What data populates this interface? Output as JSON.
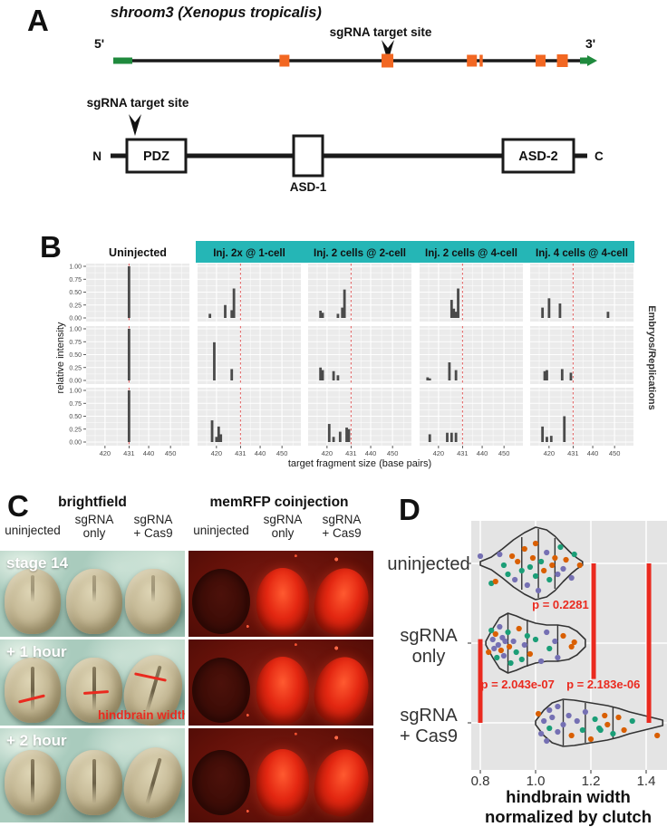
{
  "colors": {
    "accent_teal": "#25b6b6",
    "exon_orange": "#f26722",
    "utr_green": "#1f8a3d",
    "signal_red": "#ea2a1f",
    "bar_gray": "#4a4a4a",
    "panel_gray": "#ebebeb",
    "violin_bg": "#e4e4e4",
    "dashed_red": "#e05a5a",
    "ink": "#111111",
    "tick_gray": "#4d4d4d"
  },
  "panelA": {
    "label": "A",
    "title": "shroom3 (Xenopus tropicalis)",
    "gene": {
      "sgRNA_label": "sgRNA target site",
      "five_prime": "5'",
      "three_prime": "3'",
      "exons": [
        {
          "f": 0.363,
          "w": 11,
          "h": 13
        },
        {
          "f": 0.585,
          "w": 13,
          "h": 15
        },
        {
          "f": 0.767,
          "w": 11,
          "h": 13
        },
        {
          "f": 0.787,
          "w": 3.5,
          "h": 13
        },
        {
          "f": 0.915,
          "w": 11,
          "h": 13
        },
        {
          "f": 0.962,
          "w": 12,
          "h": 14
        }
      ],
      "target_exon_index": 1
    },
    "protein": {
      "sgRNA_label": "sgRNA target site",
      "n_label": "N",
      "c_label": "C",
      "domains": [
        {
          "name": "PDZ",
          "label_inside": true
        },
        {
          "name": "ASD-1",
          "label_inside": false
        },
        {
          "name": "ASD-2",
          "label_inside": true
        }
      ]
    }
  },
  "panelB": {
    "label": "B",
    "col1_header": "Uninjected",
    "headers": [
      "Inj. 2x @ 1-cell",
      "Inj. 2 cells @ 2-cell",
      "Inj. 2 cells @ 4-cell",
      "Inj. 4 cells @ 4-cell"
    ],
    "ylabel": "relative intensity",
    "xlabel": "target fragment size (base pairs)",
    "right_label": "Embryos/Replications",
    "y_ticks": [
      "1.00",
      "0.75",
      "0.50",
      "0.25",
      "0.00"
    ],
    "y_tick_values": [
      1.0,
      0.75,
      0.5,
      0.25,
      0.0
    ],
    "x_ticks": [
      420,
      431,
      440,
      450
    ],
    "x_minor": [
      415.5,
      425.5,
      435.5,
      445,
      455
    ],
    "target_size": 431,
    "type": "bar",
    "facets": [
      {
        "rows": [
          [
            [
              431,
              1.0
            ]
          ],
          [
            [
              431,
              1.0
            ]
          ],
          [
            [
              431,
              1.0
            ]
          ]
        ]
      },
      {
        "rows": [
          [
            [
              417,
              0.08
            ],
            [
              424,
              0.25
            ],
            [
              427,
              0.15
            ],
            [
              428,
              0.57
            ]
          ],
          [
            [
              419,
              0.74
            ],
            [
              427,
              0.22
            ]
          ],
          [
            [
              418,
              0.42
            ],
            [
              420,
              0.1
            ],
            [
              421,
              0.3
            ],
            [
              422,
              0.15
            ]
          ]
        ]
      },
      {
        "rows": [
          [
            [
              417,
              0.14
            ],
            [
              418,
              0.1
            ],
            [
              425,
              0.08
            ],
            [
              427,
              0.2
            ],
            [
              428,
              0.55
            ]
          ],
          [
            [
              417,
              0.25
            ],
            [
              418,
              0.2
            ],
            [
              423,
              0.18
            ],
            [
              425,
              0.1
            ]
          ],
          [
            [
              421,
              0.35
            ],
            [
              423,
              0.1
            ],
            [
              426,
              0.2
            ],
            [
              429,
              0.28
            ],
            [
              430,
              0.25
            ]
          ]
        ]
      },
      {
        "rows": [
          [
            [
              426,
              0.35
            ],
            [
              427,
              0.18
            ],
            [
              428,
              0.12
            ],
            [
              429,
              0.57
            ]
          ],
          [
            [
              415,
              0.06
            ],
            [
              416,
              0.04
            ],
            [
              425,
              0.35
            ],
            [
              428,
              0.2
            ]
          ],
          [
            [
              416,
              0.15
            ],
            [
              424,
              0.18
            ],
            [
              426,
              0.18
            ],
            [
              428,
              0.18
            ]
          ]
        ]
      },
      {
        "rows": [
          [
            [
              417,
              0.2
            ],
            [
              420,
              0.38
            ],
            [
              425,
              0.28
            ],
            [
              447,
              0.12
            ]
          ],
          [
            [
              418,
              0.18
            ],
            [
              419,
              0.2
            ],
            [
              426,
              0.22
            ],
            [
              430,
              0.15
            ]
          ],
          [
            [
              417,
              0.3
            ],
            [
              419,
              0.1
            ],
            [
              421,
              0.12
            ],
            [
              427,
              0.5
            ]
          ]
        ]
      }
    ]
  },
  "panelC": {
    "label": "C",
    "groups": [
      {
        "title": "brightfield",
        "type": "bf"
      },
      {
        "title": "memRFP coinjection",
        "type": "rfp"
      }
    ],
    "columns": [
      [
        "uninjected"
      ],
      [
        "sgRNA",
        "only"
      ],
      [
        "sgRNA",
        "+ Cas9"
      ]
    ],
    "rows": [
      {
        "label": "stage 14"
      },
      {
        "label": "+ 1 hour",
        "annotation": "hindbrain width"
      },
      {
        "label": "+ 2 hour"
      }
    ]
  },
  "panelD": {
    "label": "D",
    "type": "violin",
    "x_ticks": [
      "0.8",
      "1.0",
      "1.2",
      "1.4"
    ],
    "x_tick_values": [
      0.8,
      1.0,
      1.2,
      1.4
    ],
    "x_range": [
      0.77,
      1.48
    ],
    "xlabel_lines": [
      "hindbrain width",
      "normalized by clutch"
    ],
    "palette": {
      "o": "#d95f02",
      "g": "#1b9e77",
      "p": "#7570b3"
    },
    "violins": [
      {
        "label_lines": [
          "uninjected"
        ],
        "profile": [
          [
            0.8,
            2
          ],
          [
            0.84,
            7
          ],
          [
            0.88,
            16
          ],
          [
            0.92,
            26
          ],
          [
            0.96,
            34
          ],
          [
            1.0,
            40
          ],
          [
            1.04,
            37
          ],
          [
            1.07,
            30
          ],
          [
            1.1,
            20
          ],
          [
            1.13,
            11
          ],
          [
            1.15,
            6
          ],
          [
            1.17,
            2
          ]
        ],
        "quartiles": [
          [
            0.95,
            29
          ],
          [
            1.01,
            38
          ],
          [
            1.07,
            28
          ]
        ],
        "points": [
          [
            0.8,
            -8,
            "p"
          ],
          [
            0.84,
            22,
            "g"
          ],
          [
            0.855,
            20,
            "o"
          ],
          [
            0.87,
            -10,
            "p"
          ],
          [
            0.885,
            2,
            "g"
          ],
          [
            0.9,
            12,
            "g"
          ],
          [
            0.915,
            -8,
            "o"
          ],
          [
            0.925,
            18,
            "p"
          ],
          [
            0.935,
            -2,
            "o"
          ],
          [
            0.95,
            8,
            "g"
          ],
          [
            0.96,
            -16,
            "o"
          ],
          [
            0.97,
            24,
            "p"
          ],
          [
            0.98,
            4,
            "g"
          ],
          [
            0.99,
            -6,
            "o"
          ],
          [
            1.0,
            14,
            "g"
          ],
          [
            1.0,
            -22,
            "o"
          ],
          [
            1.01,
            30,
            "p"
          ],
          [
            1.02,
            -2,
            "g"
          ],
          [
            1.03,
            8,
            "o"
          ],
          [
            1.04,
            -12,
            "p"
          ],
          [
            1.05,
            18,
            "g"
          ],
          [
            1.06,
            2,
            "o"
          ],
          [
            1.07,
            -6,
            "o"
          ],
          [
            1.08,
            12,
            "p"
          ],
          [
            1.09,
            -18,
            "g"
          ],
          [
            1.1,
            6,
            "p"
          ],
          [
            1.11,
            -4,
            "o"
          ],
          [
            1.13,
            16,
            "p"
          ],
          [
            1.14,
            -10,
            "g"
          ],
          [
            1.16,
            2,
            "o"
          ]
        ]
      },
      {
        "label_lines": [
          "sgRNA",
          "only"
        ],
        "profile": [
          [
            0.82,
            2
          ],
          [
            0.845,
            16
          ],
          [
            0.87,
            28
          ],
          [
            0.9,
            33
          ],
          [
            0.93,
            30
          ],
          [
            0.96,
            26
          ],
          [
            1.0,
            22
          ],
          [
            1.04,
            20
          ],
          [
            1.08,
            20
          ],
          [
            1.12,
            18
          ],
          [
            1.15,
            13
          ],
          [
            1.18,
            4
          ]
        ],
        "quartiles": [
          [
            0.9,
            32
          ],
          [
            0.97,
            26
          ],
          [
            1.08,
            20
          ]
        ],
        "points": [
          [
            0.83,
            10,
            "o"
          ],
          [
            0.84,
            -14,
            "g"
          ],
          [
            0.845,
            -4,
            "p"
          ],
          [
            0.85,
            6,
            "p"
          ],
          [
            0.855,
            -10,
            "o"
          ],
          [
            0.86,
            16,
            "g"
          ],
          [
            0.865,
            2,
            "p"
          ],
          [
            0.87,
            -18,
            "p"
          ],
          [
            0.875,
            8,
            "o"
          ],
          [
            0.88,
            -6,
            "p"
          ],
          [
            0.885,
            14,
            "p"
          ],
          [
            0.89,
            -2,
            "p"
          ],
          [
            0.9,
            -12,
            "g"
          ],
          [
            0.905,
            4,
            "o"
          ],
          [
            0.91,
            22,
            "g"
          ],
          [
            0.92,
            -2,
            "p"
          ],
          [
            0.93,
            10,
            "g"
          ],
          [
            0.94,
            -16,
            "o"
          ],
          [
            0.95,
            18,
            "g"
          ],
          [
            0.96,
            2,
            "p"
          ],
          [
            0.97,
            -8,
            "g"
          ],
          [
            0.98,
            12,
            "o"
          ],
          [
            1.0,
            -4,
            "g"
          ],
          [
            1.02,
            20,
            "p"
          ],
          [
            1.04,
            -12,
            "p"
          ],
          [
            1.05,
            6,
            "g"
          ],
          [
            1.07,
            -2,
            "p"
          ],
          [
            1.08,
            16,
            "p"
          ],
          [
            1.1,
            -8,
            "o"
          ],
          [
            1.13,
            4,
            "o"
          ],
          [
            1.14,
            -1,
            "o"
          ]
        ]
      },
      {
        "label_lines": [
          "sgRNA",
          "+ Cas9"
        ],
        "profile": [
          [
            1.0,
            2
          ],
          [
            1.03,
            14
          ],
          [
            1.06,
            22
          ],
          [
            1.1,
            26
          ],
          [
            1.14,
            25
          ],
          [
            1.18,
            23
          ],
          [
            1.22,
            21
          ],
          [
            1.26,
            19
          ],
          [
            1.3,
            16
          ],
          [
            1.34,
            12
          ],
          [
            1.38,
            9
          ],
          [
            1.42,
            6
          ],
          [
            1.46,
            3
          ]
        ],
        "quartiles": [
          [
            1.1,
            25
          ],
          [
            1.18,
            22
          ],
          [
            1.28,
            17
          ]
        ],
        "points": [
          [
            1.01,
            -10,
            "o"
          ],
          [
            1.02,
            12,
            "p"
          ],
          [
            1.03,
            -2,
            "p"
          ],
          [
            1.04,
            20,
            "p"
          ],
          [
            1.05,
            -14,
            "p"
          ],
          [
            1.05,
            6,
            "g"
          ],
          [
            1.06,
            -6,
            "p"
          ],
          [
            1.08,
            10,
            "p"
          ],
          [
            1.08,
            -18,
            "p"
          ],
          [
            1.1,
            2,
            "p"
          ],
          [
            1.12,
            -8,
            "p"
          ],
          [
            1.13,
            14,
            "o"
          ],
          [
            1.15,
            -2,
            "p"
          ],
          [
            1.17,
            8,
            "g"
          ],
          [
            1.18,
            -12,
            "p"
          ],
          [
            1.2,
            18,
            "o"
          ],
          [
            1.215,
            -4,
            "g"
          ],
          [
            1.23,
            6,
            "g"
          ],
          [
            1.235,
            8,
            "g"
          ],
          [
            1.25,
            -8,
            "o"
          ],
          [
            1.26,
            2,
            "o"
          ],
          [
            1.28,
            12,
            "g"
          ],
          [
            1.3,
            -6,
            "o"
          ],
          [
            1.32,
            8,
            "o"
          ],
          [
            1.35,
            -2,
            "g"
          ],
          [
            1.44,
            14,
            "o"
          ]
        ]
      }
    ],
    "sig_lines": [
      {
        "x": 1.21,
        "from": 0,
        "to": 1.45
      },
      {
        "x": 1.41,
        "from": 0,
        "to": 2.0
      },
      {
        "x": 0.8,
        "from": 0.95,
        "to": 2.0
      }
    ],
    "p_values": [
      {
        "text": "p = 0.2281",
        "x": 1.09,
        "row": 0.52
      },
      {
        "text": "p = 2.043e-07",
        "x": 0.935,
        "row": 1.52
      },
      {
        "text": "p = 2.183e-06",
        "x": 1.245,
        "row": 1.52
      }
    ]
  }
}
